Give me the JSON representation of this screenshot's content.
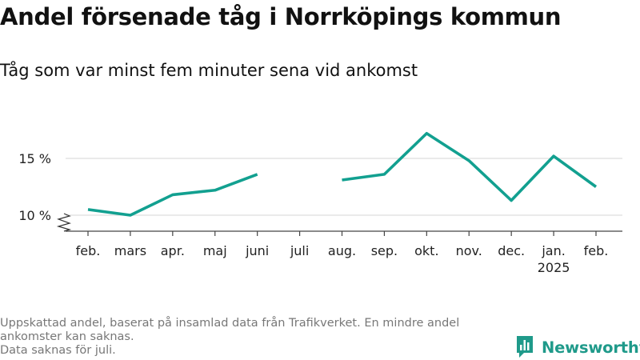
{
  "chart_data": {
    "type": "line",
    "title": "Andel försenade tåg i Norrköpings kommun",
    "subtitle": "Tåg som var minst fem minuter sena vid ankomst",
    "categories": [
      "feb.",
      "mars",
      "apr.",
      "maj",
      "juni",
      "juli",
      "aug.",
      "sep.",
      "okt.",
      "nov.",
      "dec.",
      "jan.",
      "feb."
    ],
    "year_labels": [
      "",
      "",
      "",
      "",
      "",
      "",
      "",
      "",
      "",
      "",
      "",
      "2025",
      ""
    ],
    "series": [
      {
        "values": [
          10.5,
          10.0,
          11.8,
          12.2,
          13.6,
          null,
          13.1,
          13.6,
          17.2,
          14.8,
          11.3,
          15.2,
          12.5
        ]
      }
    ],
    "yticks": [
      10,
      15
    ],
    "ytick_labels": [
      "10 %",
      "15 %"
    ],
    "ylim": [
      8.3,
      18.3
    ],
    "y_axis_break": true,
    "grid": true,
    "line_color": "#12a090",
    "grid_color": "#dddddd",
    "axis_color": "#444444",
    "footnote": [
      "Uppskattad andel, baserat på insamlad data från Trafikverket. En mindre andel ankomster kan saknas.",
      "Data saknas för juli."
    ]
  },
  "brand": {
    "name": "Newsworthy",
    "logo_icon": "newsworthy-logo-icon",
    "color": "#1f9a8a"
  }
}
